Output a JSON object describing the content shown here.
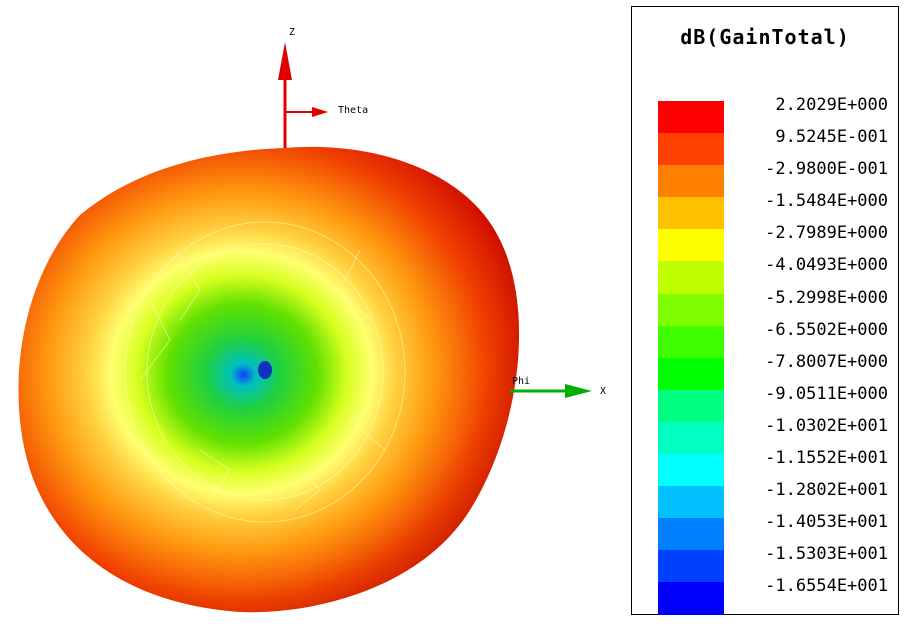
{
  "plot": {
    "axes": {
      "z_label": "Z",
      "theta_label": "Theta",
      "phi_label": "Phi",
      "x_label": "X"
    },
    "colors": {
      "z_axis": "#e00000",
      "x_axis": "#00b000",
      "surface_outer": "#d40000",
      "surface_mid": "#ff9800",
      "surface_ring": "#ffff66",
      "surface_inner": "#40d000",
      "surface_center": "#2060ff"
    }
  },
  "legend": {
    "title": "dB(GainTotal)",
    "labels": [
      " 2.2029E+000",
      " 9.5245E-001",
      "-2.9800E-001",
      "-1.5484E+000",
      "-2.7989E+000",
      "-4.0493E+000",
      "-5.2998E+000",
      "-6.5502E+000",
      "-7.8007E+000",
      "-9.0511E+000",
      "-1.0302E+001",
      "-1.1552E+001",
      "-1.2802E+001",
      "-1.4053E+001",
      "-1.5303E+001",
      "-1.6554E+001"
    ],
    "colors": [
      "#ff0000",
      "#ff4000",
      "#ff8000",
      "#ffc000",
      "#ffff00",
      "#c0ff00",
      "#80ff00",
      "#40ff00",
      "#00ff00",
      "#00ff80",
      "#00ffc0",
      "#00ffff",
      "#00c0ff",
      "#0080ff",
      "#0040ff",
      "#0000ff"
    ]
  }
}
